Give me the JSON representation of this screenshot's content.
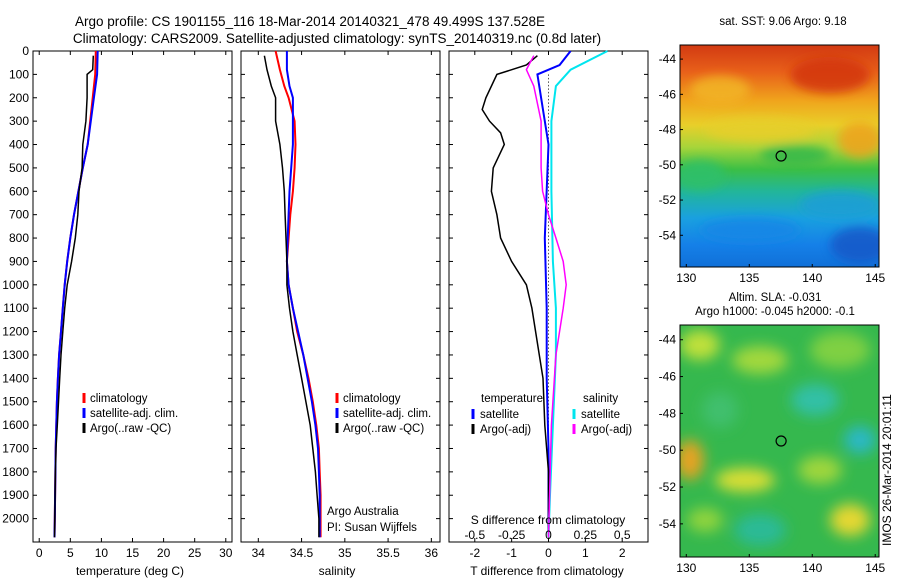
{
  "title_line1": "Argo profile: CS 1901155_116 18-Mar-2014 20140321_478 49.499S 137.528E",
  "title_line2": "Climatology: CARS2009. Satellite-adjusted climatology: synTS_20140319.nc (0.8d later)",
  "colors": {
    "climatology": "#ff0000",
    "satellite": "#0000ff",
    "argo": "#000000",
    "salinity_satellite": "#00e5ee",
    "salinity_argo": "#ff00ff"
  },
  "chart_data": [
    {
      "type": "line",
      "panel": "temperature",
      "xlabel": "temperature (deg C)",
      "ylabel": "",
      "xlim": [
        -1,
        31
      ],
      "ylim": [
        2100,
        0
      ],
      "xticks": [
        "0",
        "5",
        "10",
        "15",
        "20",
        "25",
        "30"
      ],
      "xtick_values": [
        0,
        5,
        10,
        15,
        20,
        25,
        30
      ],
      "yticks": [
        "0",
        "100",
        "200",
        "300",
        "400",
        "500",
        "600",
        "700",
        "800",
        "900",
        "1000",
        "1100",
        "1200",
        "1300",
        "1400",
        "1500",
        "1600",
        "1700",
        "1800",
        "1900",
        "2000"
      ],
      "ytick_values": [
        0,
        100,
        200,
        300,
        400,
        500,
        600,
        700,
        800,
        900,
        1000,
        1100,
        1200,
        1300,
        1400,
        1500,
        1600,
        1700,
        1800,
        1900,
        2000
      ],
      "legend": [
        "climatology",
        "satellite-adj. clim.",
        "Argo(..raw -QC)"
      ],
      "series": [
        {
          "name": "climatology",
          "color": "#ff0000",
          "x": [
            9.1,
            9.0,
            8.6,
            8.2,
            7.8,
            7.0,
            6.3,
            5.6,
            5.0,
            4.5,
            4.1,
            3.8,
            3.5,
            3.2,
            3.0,
            2.85,
            2.75,
            2.65,
            2.6,
            2.55,
            2.5,
            2.45
          ],
          "y": [
            0,
            100,
            200,
            300,
            400,
            500,
            600,
            700,
            800,
            900,
            1000,
            1100,
            1200,
            1300,
            1400,
            1500,
            1600,
            1700,
            1800,
            1900,
            2000,
            2080
          ]
        },
        {
          "name": "satellite-adj. clim.",
          "color": "#0000ff",
          "x": [
            9.4,
            9.3,
            8.8,
            8.3,
            7.8,
            7.0,
            6.3,
            5.6,
            5.0,
            4.5,
            4.1,
            3.8,
            3.5,
            3.2,
            3.0,
            2.85,
            2.75,
            2.65,
            2.6,
            2.55,
            2.5,
            2.45
          ],
          "y": [
            0,
            100,
            200,
            300,
            400,
            500,
            600,
            700,
            800,
            900,
            1000,
            1100,
            1200,
            1300,
            1400,
            1500,
            1600,
            1700,
            1800,
            1900,
            2000,
            2080
          ]
        },
        {
          "name": "Argo(..raw -QC)",
          "color": "#000000",
          "x": [
            8.7,
            8.6,
            7.7,
            7.7,
            7.5,
            7.0,
            6.9,
            6.4,
            6.2,
            5.8,
            5.2,
            4.5,
            4.1,
            3.8,
            3.5,
            3.3,
            3.1,
            2.9,
            2.7,
            2.6,
            2.55,
            2.5,
            2.45
          ],
          "y": [
            20,
            80,
            100,
            200,
            300,
            400,
            500,
            600,
            700,
            800,
            900,
            1000,
            1100,
            1200,
            1300,
            1400,
            1500,
            1600,
            1700,
            1800,
            1900,
            2000,
            2080
          ]
        }
      ]
    },
    {
      "type": "line",
      "panel": "salinity",
      "xlabel": "salinity",
      "xlim": [
        33.8,
        36.1
      ],
      "ylim": [
        2100,
        0
      ],
      "xticks": [
        "34",
        "34.5",
        "35",
        "35.5",
        "36"
      ],
      "xtick_values": [
        34,
        34.5,
        35,
        35.5,
        36
      ],
      "legend": [
        "climatology",
        "satellite-adj. clim.",
        "Argo(..raw -QC)"
      ],
      "annotations": [
        "Argo Australia",
        "PI: Susan Wijffels"
      ],
      "series": [
        {
          "name": "climatology",
          "color": "#ff0000",
          "x": [
            34.2,
            34.25,
            34.3,
            34.35,
            34.42,
            34.43,
            34.42,
            34.4,
            34.37,
            34.35,
            34.33,
            34.35,
            34.4,
            34.45,
            34.52,
            34.58,
            34.63,
            34.67,
            34.7,
            34.71,
            34.72,
            34.72
          ],
          "y": [
            0,
            80,
            150,
            200,
            300,
            400,
            500,
            600,
            700,
            800,
            900,
            1000,
            1100,
            1200,
            1300,
            1400,
            1500,
            1600,
            1700,
            1800,
            1900,
            2080
          ]
        },
        {
          "name": "satellite-adj. clim.",
          "color": "#0000ff",
          "x": [
            34.33,
            34.33,
            34.36,
            34.4,
            34.4,
            34.4,
            34.38,
            34.36,
            34.35,
            34.34,
            34.33,
            34.35,
            34.4,
            34.46,
            34.52,
            34.57,
            34.62,
            34.66,
            34.69,
            34.7,
            34.71,
            34.71
          ],
          "y": [
            0,
            80,
            150,
            200,
            300,
            400,
            500,
            600,
            700,
            800,
            900,
            1000,
            1100,
            1200,
            1300,
            1400,
            1500,
            1600,
            1700,
            1800,
            1900,
            2080
          ]
        },
        {
          "name": "Argo(..raw -QC)",
          "color": "#000000",
          "x": [
            34.07,
            34.1,
            34.15,
            34.2,
            34.2,
            34.25,
            34.28,
            34.3,
            34.31,
            34.32,
            34.33,
            34.33,
            34.36,
            34.4,
            34.45,
            34.5,
            34.55,
            34.6,
            34.63,
            34.66,
            34.68,
            34.7,
            34.7
          ],
          "y": [
            20,
            80,
            150,
            200,
            300,
            400,
            500,
            600,
            700,
            800,
            900,
            1000,
            1100,
            1200,
            1300,
            1400,
            1500,
            1600,
            1700,
            1800,
            1900,
            2000,
            2080
          ]
        }
      ]
    },
    {
      "type": "line",
      "panel": "difference",
      "xlabel": "T difference from climatology",
      "xlabel_top": "S difference from climatology",
      "xlim": [
        -2.7,
        2.7
      ],
      "ylim": [
        2100,
        0
      ],
      "xticks": [
        "-2",
        "-1",
        "0",
        "1",
        "2"
      ],
      "xtick_values": [
        -2,
        -1,
        0,
        1,
        2
      ],
      "xticks_top": [
        "-0.5",
        "-0.25",
        "0",
        "0.25",
        "0.5"
      ],
      "xtick_top_values": [
        -0.5,
        -0.25,
        0,
        0.25,
        0.5
      ],
      "legend_left_title": "temperature",
      "legend_right_title": "salinity",
      "legend": [
        "satellite",
        "Argo(-adj)",
        "satellite",
        "Argo(-adj)"
      ],
      "series": [
        {
          "name": "temperature satellite",
          "color": "#0000ff",
          "x": [
            0.6,
            0.3,
            -0.3,
            -0.2,
            0,
            -0.1,
            -0.05,
            -0.05,
            0,
            0,
            0
          ],
          "y": [
            0,
            60,
            100,
            200,
            400,
            800,
            1100,
            1400,
            1700,
            2000,
            2080
          ]
        },
        {
          "name": "temperature Argo(-adj)",
          "color": "#000000",
          "x": [
            -0.3,
            -0.6,
            -1.4,
            -1.7,
            -1.8,
            -1.6,
            -1.3,
            -1.2,
            -1.5,
            -1.55,
            -1.4,
            -1.3,
            -1.0,
            -0.6,
            -0.45,
            -0.35,
            -0.25,
            -0.15,
            -0.1,
            0,
            0
          ],
          "y": [
            20,
            60,
            100,
            200,
            250,
            300,
            350,
            400,
            500,
            600,
            700,
            800,
            900,
            1000,
            1100,
            1200,
            1300,
            1400,
            1600,
            1800,
            2080
          ]
        },
        {
          "name": "salinity satellite",
          "color": "#00e5ee",
          "x": [
            0.4,
            0.15,
            0.05,
            0.02,
            0.02,
            0.03,
            0.05,
            0.05,
            0.03,
            0.01,
            0
          ],
          "y": [
            0,
            80,
            150,
            300,
            600,
            900,
            1100,
            1300,
            1600,
            1900,
            2080
          ]
        },
        {
          "name": "salinity Argo(-adj)",
          "color": "#ff00ff",
          "x": [
            -0.1,
            -0.15,
            -0.1,
            -0.05,
            -0.05,
            -0.04,
            0,
            0.05,
            0.1,
            0.12,
            0.1,
            0.05,
            0.02,
            0
          ],
          "y": [
            20,
            80,
            150,
            300,
            500,
            600,
            700,
            800,
            900,
            1000,
            1100,
            1300,
            1600,
            2080
          ]
        }
      ]
    }
  ],
  "maps": [
    {
      "title": "sat. SST: 9.06 Argo: 9.18",
      "xticks": [
        "130",
        "135",
        "140",
        "145"
      ],
      "xtick_values": [
        130,
        135,
        140,
        145
      ],
      "yticks": [
        "-44",
        "-46",
        "-48",
        "-50",
        "-52",
        "-54"
      ],
      "ytick_values": [
        -44,
        -46,
        -48,
        -50,
        -52,
        -54
      ],
      "xlim": [
        129.5,
        145.3
      ],
      "ylim": [
        -55.8,
        -43.2
      ],
      "marker": [
        137.528,
        -49.499
      ]
    },
    {
      "title_line1": "Altim. SLA: -0.031",
      "title_line2": "Argo h1000: -0.045 h2000: -0.1",
      "xticks": [
        "130",
        "135",
        "140",
        "145"
      ],
      "xtick_values": [
        130,
        135,
        140,
        145
      ],
      "yticks": [
        "-44",
        "-46",
        "-48",
        "-50",
        "-52",
        "-54"
      ],
      "ytick_values": [
        -44,
        -46,
        -48,
        -50,
        -52,
        -54
      ],
      "xlim": [
        129.5,
        145.3
      ],
      "ylim": [
        -55.8,
        -43.2
      ],
      "marker": [
        137.528,
        -49.499
      ]
    }
  ],
  "side_label": "IMOS 26-Mar-2014 20:01:11"
}
